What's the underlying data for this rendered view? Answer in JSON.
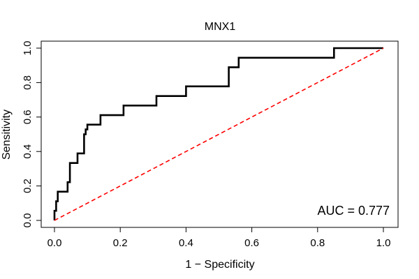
{
  "chart_data": {
    "type": "line",
    "title": "MNX1",
    "xlabel": "1 − Specificity",
    "ylabel": "Sensitivity",
    "xlim": [
      0,
      1
    ],
    "ylim": [
      0,
      1
    ],
    "x_ticks": [
      "0.0",
      "0.2",
      "0.4",
      "0.6",
      "0.8",
      "1.0"
    ],
    "y_ticks": [
      "0.0",
      "0.2",
      "0.4",
      "0.6",
      "0.8",
      "1.0"
    ],
    "grid": false,
    "annotation": "AUC = 0.777",
    "annotation_position": "bottom-right",
    "series": [
      {
        "style": "solid",
        "color": "#000000",
        "x": [
          0.0,
          0.0,
          0.005,
          0.005,
          0.01,
          0.01,
          0.04,
          0.04,
          0.047,
          0.047,
          0.07,
          0.07,
          0.09,
          0.09,
          0.095,
          0.095,
          0.1,
          0.1,
          0.14,
          0.14,
          0.21,
          0.21,
          0.31,
          0.31,
          0.4,
          0.4,
          0.53,
          0.53,
          0.56,
          0.56,
          0.85,
          0.85,
          1.0
        ],
        "y": [
          0.0,
          0.056,
          0.056,
          0.111,
          0.111,
          0.167,
          0.167,
          0.222,
          0.222,
          0.333,
          0.333,
          0.389,
          0.389,
          0.5,
          0.5,
          0.528,
          0.528,
          0.556,
          0.556,
          0.611,
          0.611,
          0.667,
          0.667,
          0.722,
          0.722,
          0.778,
          0.778,
          0.889,
          0.889,
          0.944,
          0.944,
          1.0,
          1.0
        ]
      },
      {
        "style": "dashed",
        "color": "#ff0000",
        "x": [
          0,
          1
        ],
        "y": [
          0,
          1
        ]
      }
    ]
  }
}
